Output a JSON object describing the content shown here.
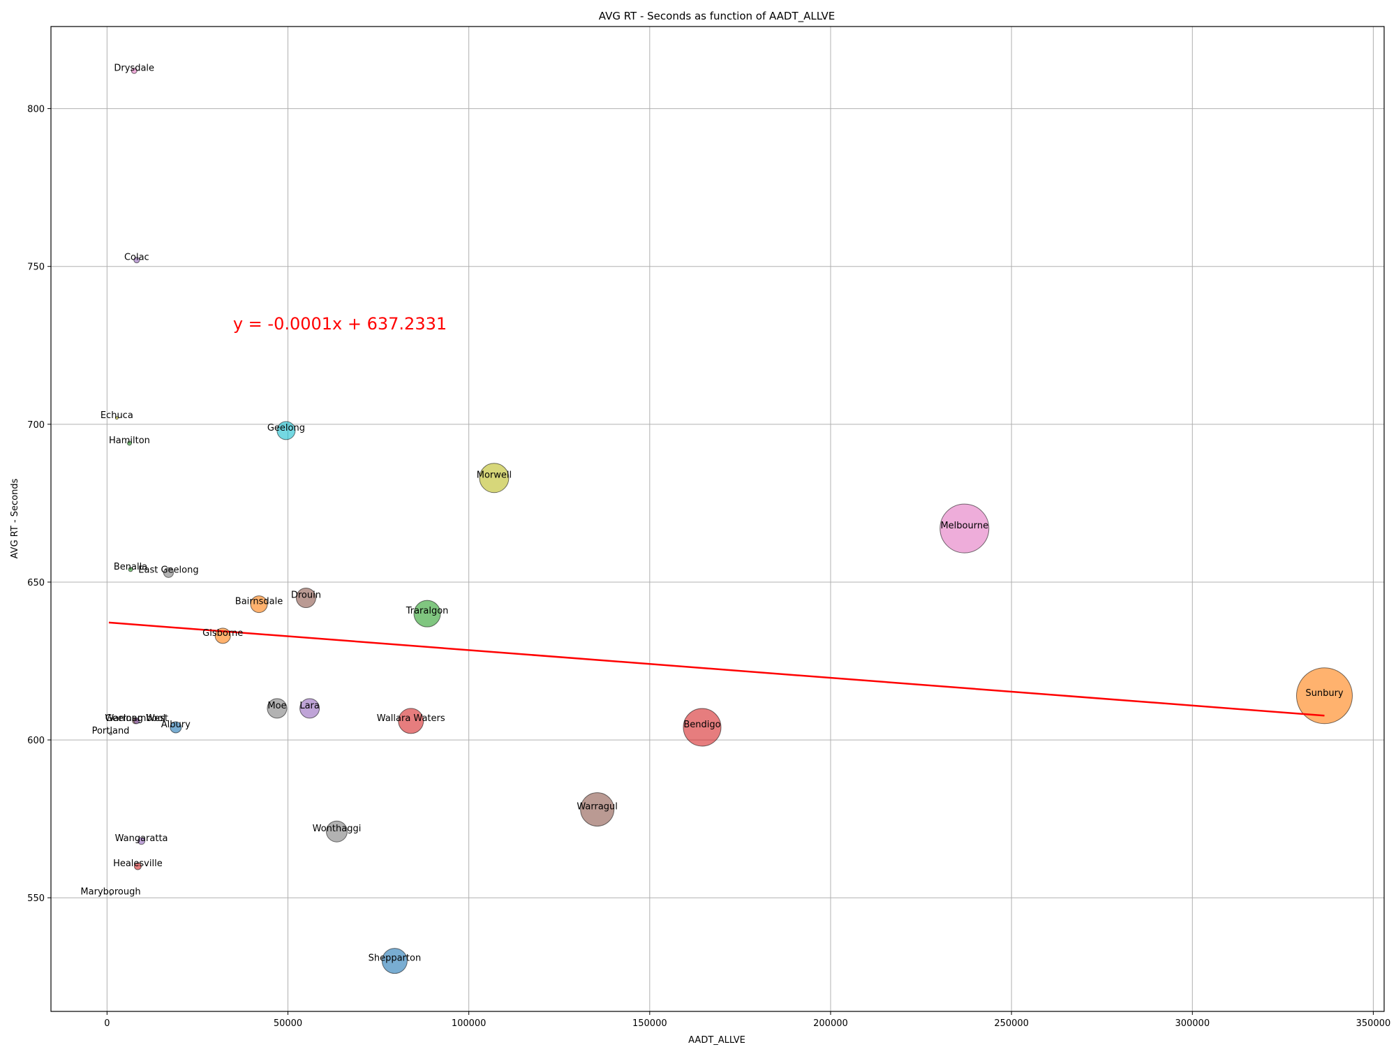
{
  "chart_data": {
    "type": "scatter",
    "title": "AVG RT - Seconds as function of AADT_ALLVE",
    "xlabel": "AADT_ALLVE",
    "ylabel": "AVG RT - Seconds",
    "xlim": [
      -15500,
      353000
    ],
    "ylim": [
      514,
      826
    ],
    "x_ticks": [
      0,
      50000,
      100000,
      150000,
      200000,
      250000,
      300000,
      350000
    ],
    "y_ticks": [
      550,
      600,
      650,
      700,
      750,
      800
    ],
    "grid": true,
    "regression": {
      "equation": "y = -0.0001x + 637.2331",
      "slope": -8.78e-05,
      "intercept": 637.2331,
      "x_range": [
        500,
        336500
      ],
      "color": "#ff0000"
    },
    "points": [
      {
        "label": "Drysdale",
        "x": 7500,
        "y": 812,
        "size": 4,
        "color": "#e377c2"
      },
      {
        "label": "Colac",
        "x": 8200,
        "y": 752,
        "size": 4,
        "color": "#9467bd"
      },
      {
        "label": "Echuca",
        "x": 2700,
        "y": 702,
        "size": 2,
        "color": "#bcbd22"
      },
      {
        "label": "Hamilton",
        "x": 6200,
        "y": 694,
        "size": 3,
        "color": "#2ca02c"
      },
      {
        "label": "Geelong",
        "x": 49500,
        "y": 698,
        "size": 13,
        "color": "#17becf"
      },
      {
        "label": "Morwell",
        "x": 107000,
        "y": 683,
        "size": 21,
        "color": "#bcbd22"
      },
      {
        "label": "Melbourne",
        "x": 237000,
        "y": 667,
        "size": 35,
        "color": "#e377c2"
      },
      {
        "label": "Benalla",
        "x": 6500,
        "y": 654,
        "size": 3,
        "color": "#2ca02c"
      },
      {
        "label": "East Geelong",
        "x": 17000,
        "y": 653,
        "size": 7,
        "color": "#7f7f7f"
      },
      {
        "label": "Drouin",
        "x": 55000,
        "y": 645,
        "size": 14,
        "color": "#8c564b"
      },
      {
        "label": "Bairnsdale",
        "x": 42000,
        "y": 643,
        "size": 12,
        "color": "#ff7f0e"
      },
      {
        "label": "Traralgon",
        "x": 88500,
        "y": 640,
        "size": 19,
        "color": "#2ca02c"
      },
      {
        "label": "Gisborne",
        "x": 32000,
        "y": 633,
        "size": 11,
        "color": "#ff7f0e"
      },
      {
        "label": "Sunbury",
        "x": 336500,
        "y": 614,
        "size": 40,
        "color": "#ff7f0e"
      },
      {
        "label": "Moe",
        "x": 47000,
        "y": 610,
        "size": 14,
        "color": "#7f7f7f"
      },
      {
        "label": "Lara",
        "x": 56000,
        "y": 610,
        "size": 14,
        "color": "#9467bd"
      },
      {
        "label": "Wallara Waters",
        "x": 84000,
        "y": 606,
        "size": 18,
        "color": "#d62728"
      },
      {
        "label": "Bendigo",
        "x": 164500,
        "y": 604,
        "size": 27,
        "color": "#d62728"
      },
      {
        "label": "Warrnambool",
        "x": 7800,
        "y": 606,
        "size": 4,
        "color": "#8c564b"
      },
      {
        "label": "Geelong West",
        "x": 8200,
        "y": 606,
        "size": 4,
        "color": "#9467bd"
      },
      {
        "label": "Albury",
        "x": 19000,
        "y": 604,
        "size": 8,
        "color": "#1f77b4"
      },
      {
        "label": "Portland",
        "x": 1000,
        "y": 602,
        "size": 2,
        "color": "#7f7f7f"
      },
      {
        "label": "Warragul",
        "x": 135500,
        "y": 578,
        "size": 24,
        "color": "#8c564b"
      },
      {
        "label": "Wonthaggi",
        "x": 63500,
        "y": 571,
        "size": 15,
        "color": "#7f7f7f"
      },
      {
        "label": "Wangaratta",
        "x": 9500,
        "y": 568,
        "size": 5,
        "color": "#9467bd"
      },
      {
        "label": "Healesville",
        "x": 8500,
        "y": 560,
        "size": 5,
        "color": "#d62728"
      },
      {
        "label": "Maryborough",
        "x": 1000,
        "y": 551,
        "size": 1,
        "color": "#7f7f7f"
      },
      {
        "label": "Shepparton",
        "x": 79500,
        "y": 530,
        "size": 18,
        "color": "#1f77b4"
      }
    ]
  }
}
